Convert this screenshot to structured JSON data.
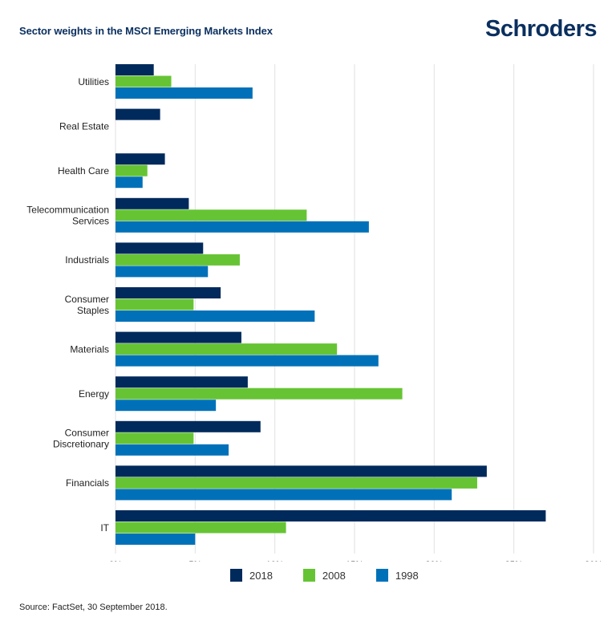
{
  "header": {
    "title": "Sector weights in the MSCI Emerging Markets Index",
    "logo": "Schroders"
  },
  "footer": {
    "source": "Source: FactSet, 30 September 2018."
  },
  "colors": {
    "2018": "#002a5c",
    "2008": "#66c434",
    "1998": "#0071b9",
    "grid": "#e2e2e2",
    "title": "#0a2f5f"
  },
  "chart_data": {
    "type": "bar",
    "orientation": "horizontal",
    "title": "Sector weights in the MSCI Emerging Markets Index",
    "xlabel": "",
    "ylabel": "",
    "xlim": [
      0,
      30
    ],
    "x_ticks": [
      "0%",
      "5%",
      "10%",
      "15%",
      "20%",
      "25%",
      "30%"
    ],
    "x_tick_values": [
      0,
      5,
      10,
      15,
      20,
      25,
      30
    ],
    "grid": true,
    "legend_position": "bottom",
    "categories": [
      [
        "Utilities"
      ],
      [
        "Real Estate"
      ],
      [
        "Health Care"
      ],
      [
        "Telecommunication",
        "Services"
      ],
      [
        "Industrials"
      ],
      [
        "Consumer",
        "Staples"
      ],
      [
        "Materials"
      ],
      [
        "Energy"
      ],
      [
        "Consumer",
        "Discretionary"
      ],
      [
        "Financials"
      ],
      [
        "IT"
      ]
    ],
    "series": [
      {
        "name": "2018",
        "values": [
          2.4,
          2.8,
          3.1,
          4.6,
          5.5,
          6.6,
          7.9,
          8.3,
          9.1,
          23.3,
          27.0
        ]
      },
      {
        "name": "2008",
        "values": [
          3.5,
          0,
          2.0,
          12.0,
          7.8,
          4.9,
          13.9,
          18.0,
          4.9,
          22.7,
          10.7
        ]
      },
      {
        "name": "1998",
        "values": [
          8.6,
          0,
          1.7,
          15.9,
          5.8,
          12.5,
          16.5,
          6.3,
          7.1,
          21.1,
          5.0
        ]
      }
    ]
  }
}
